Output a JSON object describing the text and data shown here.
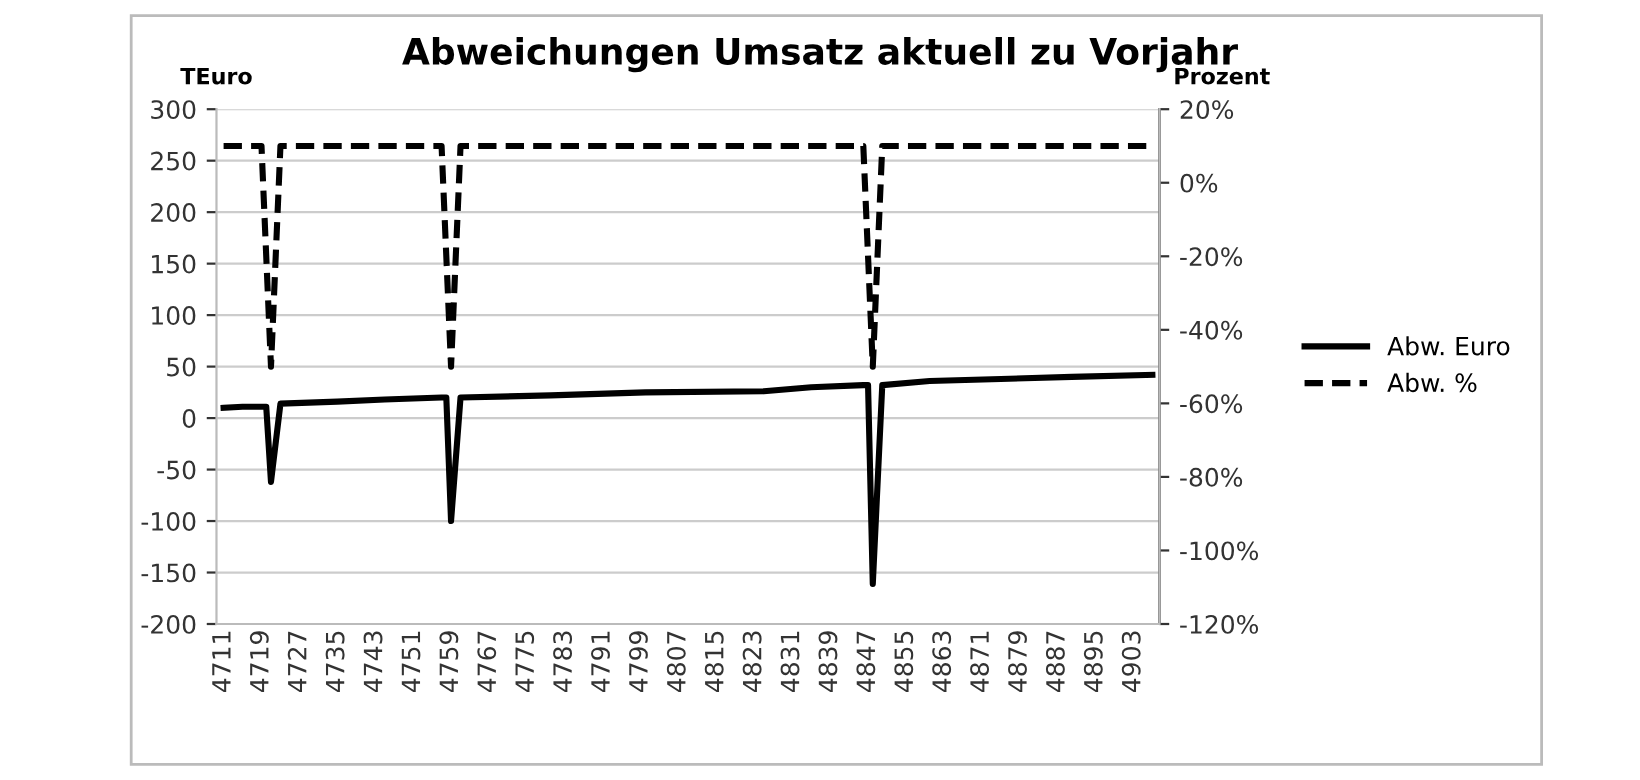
{
  "chart_data": {
    "type": "line",
    "title": "Abweichungen Umsatz aktuell zu Vorjahr",
    "ylabel": "TEuro",
    "y2label": "Prozent",
    "xlim": [
      4709.5,
      4908.5
    ],
    "xticks": [
      4711,
      4719,
      4727,
      4735,
      4743,
      4751,
      4759,
      4767,
      4775,
      4783,
      4791,
      4799,
      4807,
      4815,
      4823,
      4831,
      4839,
      4847,
      4855,
      4863,
      4871,
      4879,
      4887,
      4895,
      4903
    ],
    "ylim": [
      -200,
      300
    ],
    "yticks": [
      -200,
      -150,
      -100,
      -50,
      0,
      50,
      100,
      150,
      200,
      250,
      300
    ],
    "y2lim": [
      -120,
      20
    ],
    "y2ticks": [
      {
        "value": -120,
        "label": "-120%"
      },
      {
        "value": -100,
        "label": "-100%"
      },
      {
        "value": -80,
        "label": "-80%"
      },
      {
        "value": -60,
        "label": "-60%"
      },
      {
        "value": -40,
        "label": "-40%"
      },
      {
        "value": -20,
        "label": "-20%"
      },
      {
        "value": 0,
        "label": "0%"
      },
      {
        "value": 20,
        "label": "20%"
      }
    ],
    "grid": "y",
    "legend": "right",
    "marker": "none",
    "series": [
      {
        "name": "Abw. Euro",
        "color": "#000000",
        "line_style": "solid",
        "x": [
          4711,
          4715,
          4720,
          4721,
          4723,
          4735,
          4745,
          4757,
          4758,
          4759,
          4761,
          4780,
          4800,
          4825,
          4835,
          4846,
          4847,
          4848,
          4850,
          4860,
          4875,
          4890,
          4907
        ],
        "values": [
          10,
          11,
          11,
          -62,
          14,
          16,
          18,
          20,
          20,
          -100,
          20,
          22,
          25,
          26,
          30,
          32,
          32,
          -161,
          32,
          36,
          38,
          40,
          42
        ]
      },
      {
        "name": "Abw. %",
        "color": "#000000",
        "line_style": "dashed",
        "axis": "y2",
        "x": [
          4711,
          4719,
          4721,
          4723,
          4757,
          4759,
          4761,
          4846,
          4848,
          4850,
          4907
        ],
        "values": [
          10,
          10,
          -50,
          10,
          10,
          -50,
          10,
          10,
          -50,
          10,
          10
        ]
      }
    ]
  }
}
